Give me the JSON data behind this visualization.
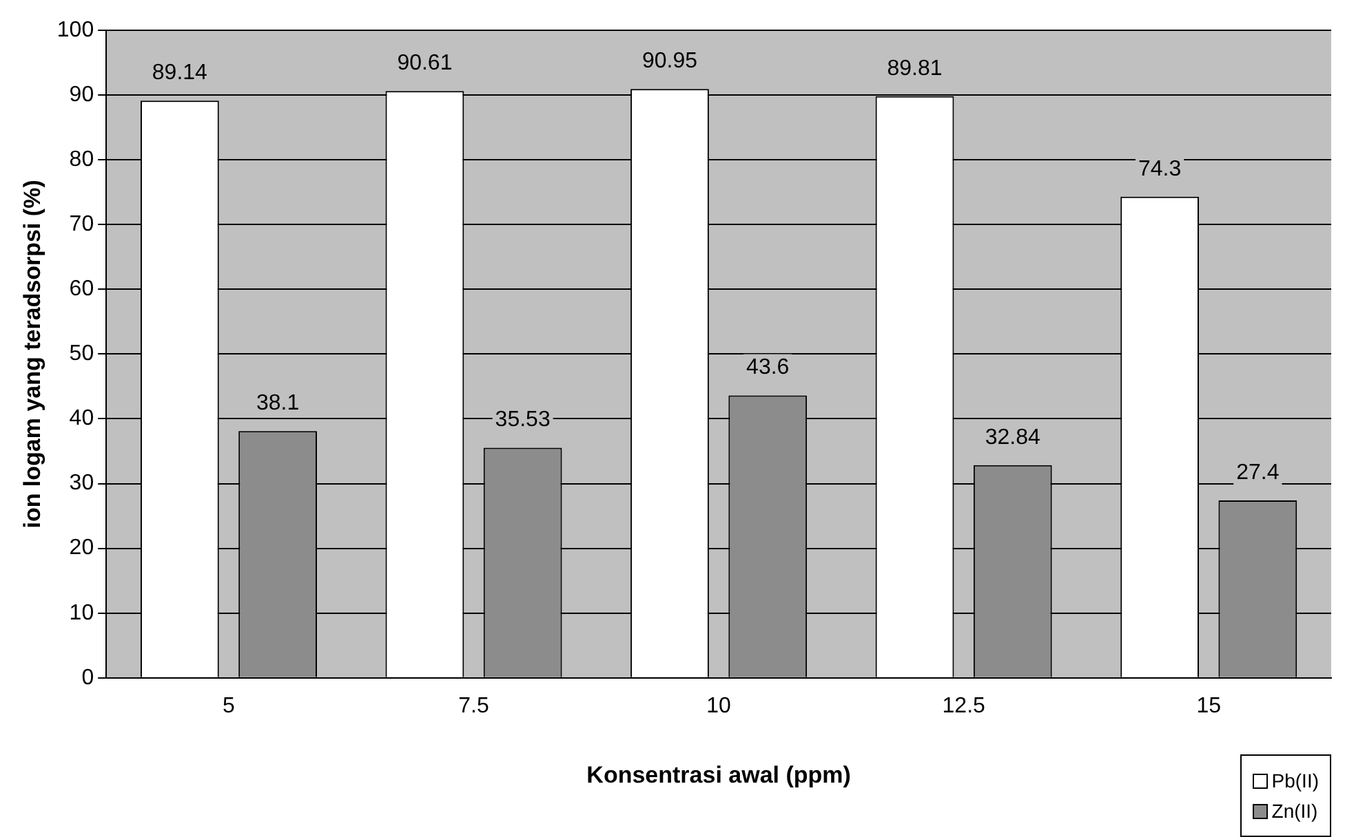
{
  "chart_data": {
    "type": "bar",
    "xlabel": "Konsentrasi awal (ppm)",
    "ylabel": "ion logam yang teradsorpsi (%)",
    "categories": [
      "5",
      "7.5",
      "10",
      "12.5",
      "15"
    ],
    "series": [
      {
        "name": "Pb(II)",
        "color": "#ffffff",
        "values": [
          89.14,
          90.61,
          90.95,
          89.81,
          74.3
        ]
      },
      {
        "name": "Zn(II)",
        "color": "#8c8c8c",
        "values": [
          38.1,
          35.53,
          43.6,
          32.84,
          27.4
        ]
      }
    ],
    "ylim": [
      0,
      100
    ],
    "yticks": [
      0,
      10,
      20,
      30,
      40,
      50,
      60,
      70,
      80,
      90,
      100
    ],
    "grid": "y",
    "legend": "bottom right",
    "data_labels": true
  }
}
